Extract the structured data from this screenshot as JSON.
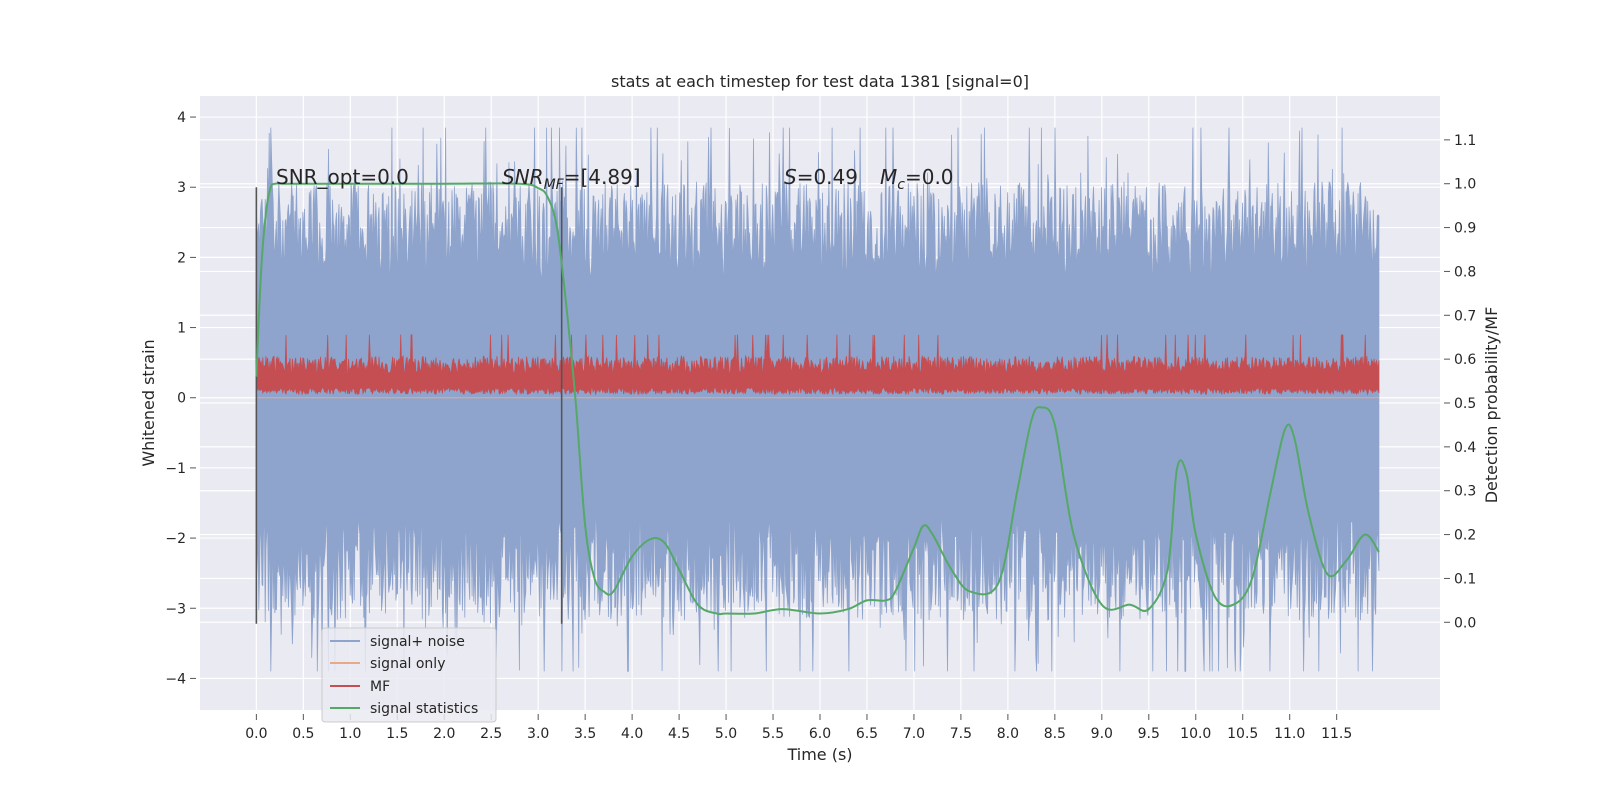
{
  "chart_data": {
    "type": "line",
    "title": "stats at each timestep for test data 1381 [signal=0]",
    "xlabel": "Time (s)",
    "ylabel_left": "Whitened strain",
    "ylabel_right": "Detection probability/MF",
    "xlim": [
      -0.6,
      12.6
    ],
    "ylim_left": [
      -4.45,
      4.3
    ],
    "ylim_right": [
      -0.2,
      1.2
    ],
    "xticks": [
      "0.0",
      "0.5",
      "1.0",
      "1.5",
      "2.0",
      "2.5",
      "3.0",
      "3.5",
      "4.0",
      "4.5",
      "5.0",
      "5.5",
      "6.0",
      "6.5",
      "7.0",
      "7.5",
      "8.0",
      "8.5",
      "9.0",
      "9.5",
      "10.0",
      "10.5",
      "11.0",
      "11.5"
    ],
    "yticks_left": [
      "4",
      "3",
      "2",
      "1",
      "0",
      "−1",
      "−2",
      "−3",
      "−4"
    ],
    "yticks_right": [
      "1.1",
      "1.0",
      "0.9",
      "0.8",
      "0.7",
      "0.6",
      "0.5",
      "0.4",
      "0.3",
      "0.2",
      "0.1",
      "0.0"
    ],
    "grid": true,
    "legend_placement": "lower-left",
    "annotations": {
      "snr_opt": "SNR_opt=0.0",
      "snr_mf_name": "SNR",
      "snr_mf_sub": "MF",
      "snr_mf_value": "=[4.89]",
      "s_name": "S",
      "s_value": "=0.49",
      "mc_name": "M",
      "mc_sub": "c",
      "mc_value": "=0.0"
    },
    "vertical_markers_x": [
      0.0,
      3.25
    ],
    "series": [
      {
        "name": "signal+ noise",
        "color": "#8fa4cc",
        "axis": "left",
        "description_range": [
          -3.9,
          3.9
        ],
        "x_range": [
          0.0,
          11.95
        ]
      },
      {
        "name": "signal only",
        "color": "#e8a986",
        "axis": "left",
        "values": "flat 0"
      },
      {
        "name": "MF",
        "color": "#c44e52",
        "axis": "left",
        "x_range": [
          0.0,
          11.95
        ]
      },
      {
        "name": "signal statistics",
        "color": "#55a868",
        "axis": "right",
        "x": [
          0.0,
          0.05,
          0.1,
          0.15,
          0.2,
          0.3,
          0.5,
          1.0,
          2.0,
          2.8,
          3.0,
          3.1,
          3.2,
          3.3,
          3.4,
          3.5,
          3.6,
          3.7,
          3.8,
          4.0,
          4.2,
          4.35,
          4.5,
          4.7,
          4.9,
          5.0,
          5.3,
          5.6,
          6.0,
          6.3,
          6.5,
          6.7,
          6.8,
          7.0,
          7.1,
          7.2,
          7.4,
          7.6,
          7.9,
          8.1,
          8.25,
          8.35,
          8.5,
          8.7,
          9.0,
          9.3,
          9.5,
          9.7,
          9.8,
          9.9,
          10.0,
          10.2,
          10.4,
          10.6,
          10.8,
          10.95,
          11.05,
          11.2,
          11.4,
          11.6,
          11.8,
          11.95
        ],
        "y": [
          0.56,
          0.8,
          0.93,
          0.99,
          1.0,
          1.0,
          1.0,
          1.0,
          1.0,
          1.0,
          0.99,
          0.97,
          0.9,
          0.72,
          0.5,
          0.22,
          0.1,
          0.07,
          0.07,
          0.15,
          0.19,
          0.18,
          0.12,
          0.04,
          0.02,
          0.02,
          0.02,
          0.03,
          0.02,
          0.03,
          0.05,
          0.05,
          0.07,
          0.17,
          0.22,
          0.2,
          0.12,
          0.07,
          0.09,
          0.3,
          0.46,
          0.49,
          0.45,
          0.2,
          0.04,
          0.04,
          0.03,
          0.12,
          0.35,
          0.34,
          0.2,
          0.06,
          0.04,
          0.1,
          0.3,
          0.44,
          0.42,
          0.25,
          0.11,
          0.14,
          0.2,
          0.16
        ]
      }
    ]
  }
}
